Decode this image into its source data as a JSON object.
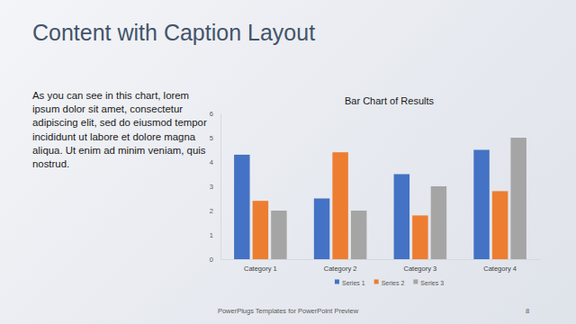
{
  "slide": {
    "title": "Content with Caption Layout",
    "caption": "As you can see in this chart, lorem ipsum dolor sit amet, consectetur adipiscing elit, sed do eiusmod tempor incididunt ut labore et dolore magna aliqua. Ut enim ad minim veniam, quis nostrud.",
    "footer": "PowerPlugs Templates for PowerPoint Preview",
    "page_number": 8
  },
  "chart_data": {
    "type": "bar",
    "title": "Bar Chart of Results",
    "categories": [
      "Category 1",
      "Category 2",
      "Category 3",
      "Category 4"
    ],
    "series": [
      {
        "name": "Series 1",
        "color": "#4472c4",
        "values": [
          4.3,
          2.5,
          3.5,
          4.5
        ]
      },
      {
        "name": "Series 2",
        "color": "#ed7d31",
        "values": [
          2.4,
          4.4,
          1.8,
          2.8
        ]
      },
      {
        "name": "Series 3",
        "color": "#a5a5a5",
        "values": [
          2,
          2,
          3,
          5
        ]
      }
    ],
    "ylim": [
      0,
      6
    ],
    "yticks": [
      0,
      1,
      2,
      3,
      4,
      5,
      6
    ],
    "grid": false,
    "legend": "bottom"
  }
}
